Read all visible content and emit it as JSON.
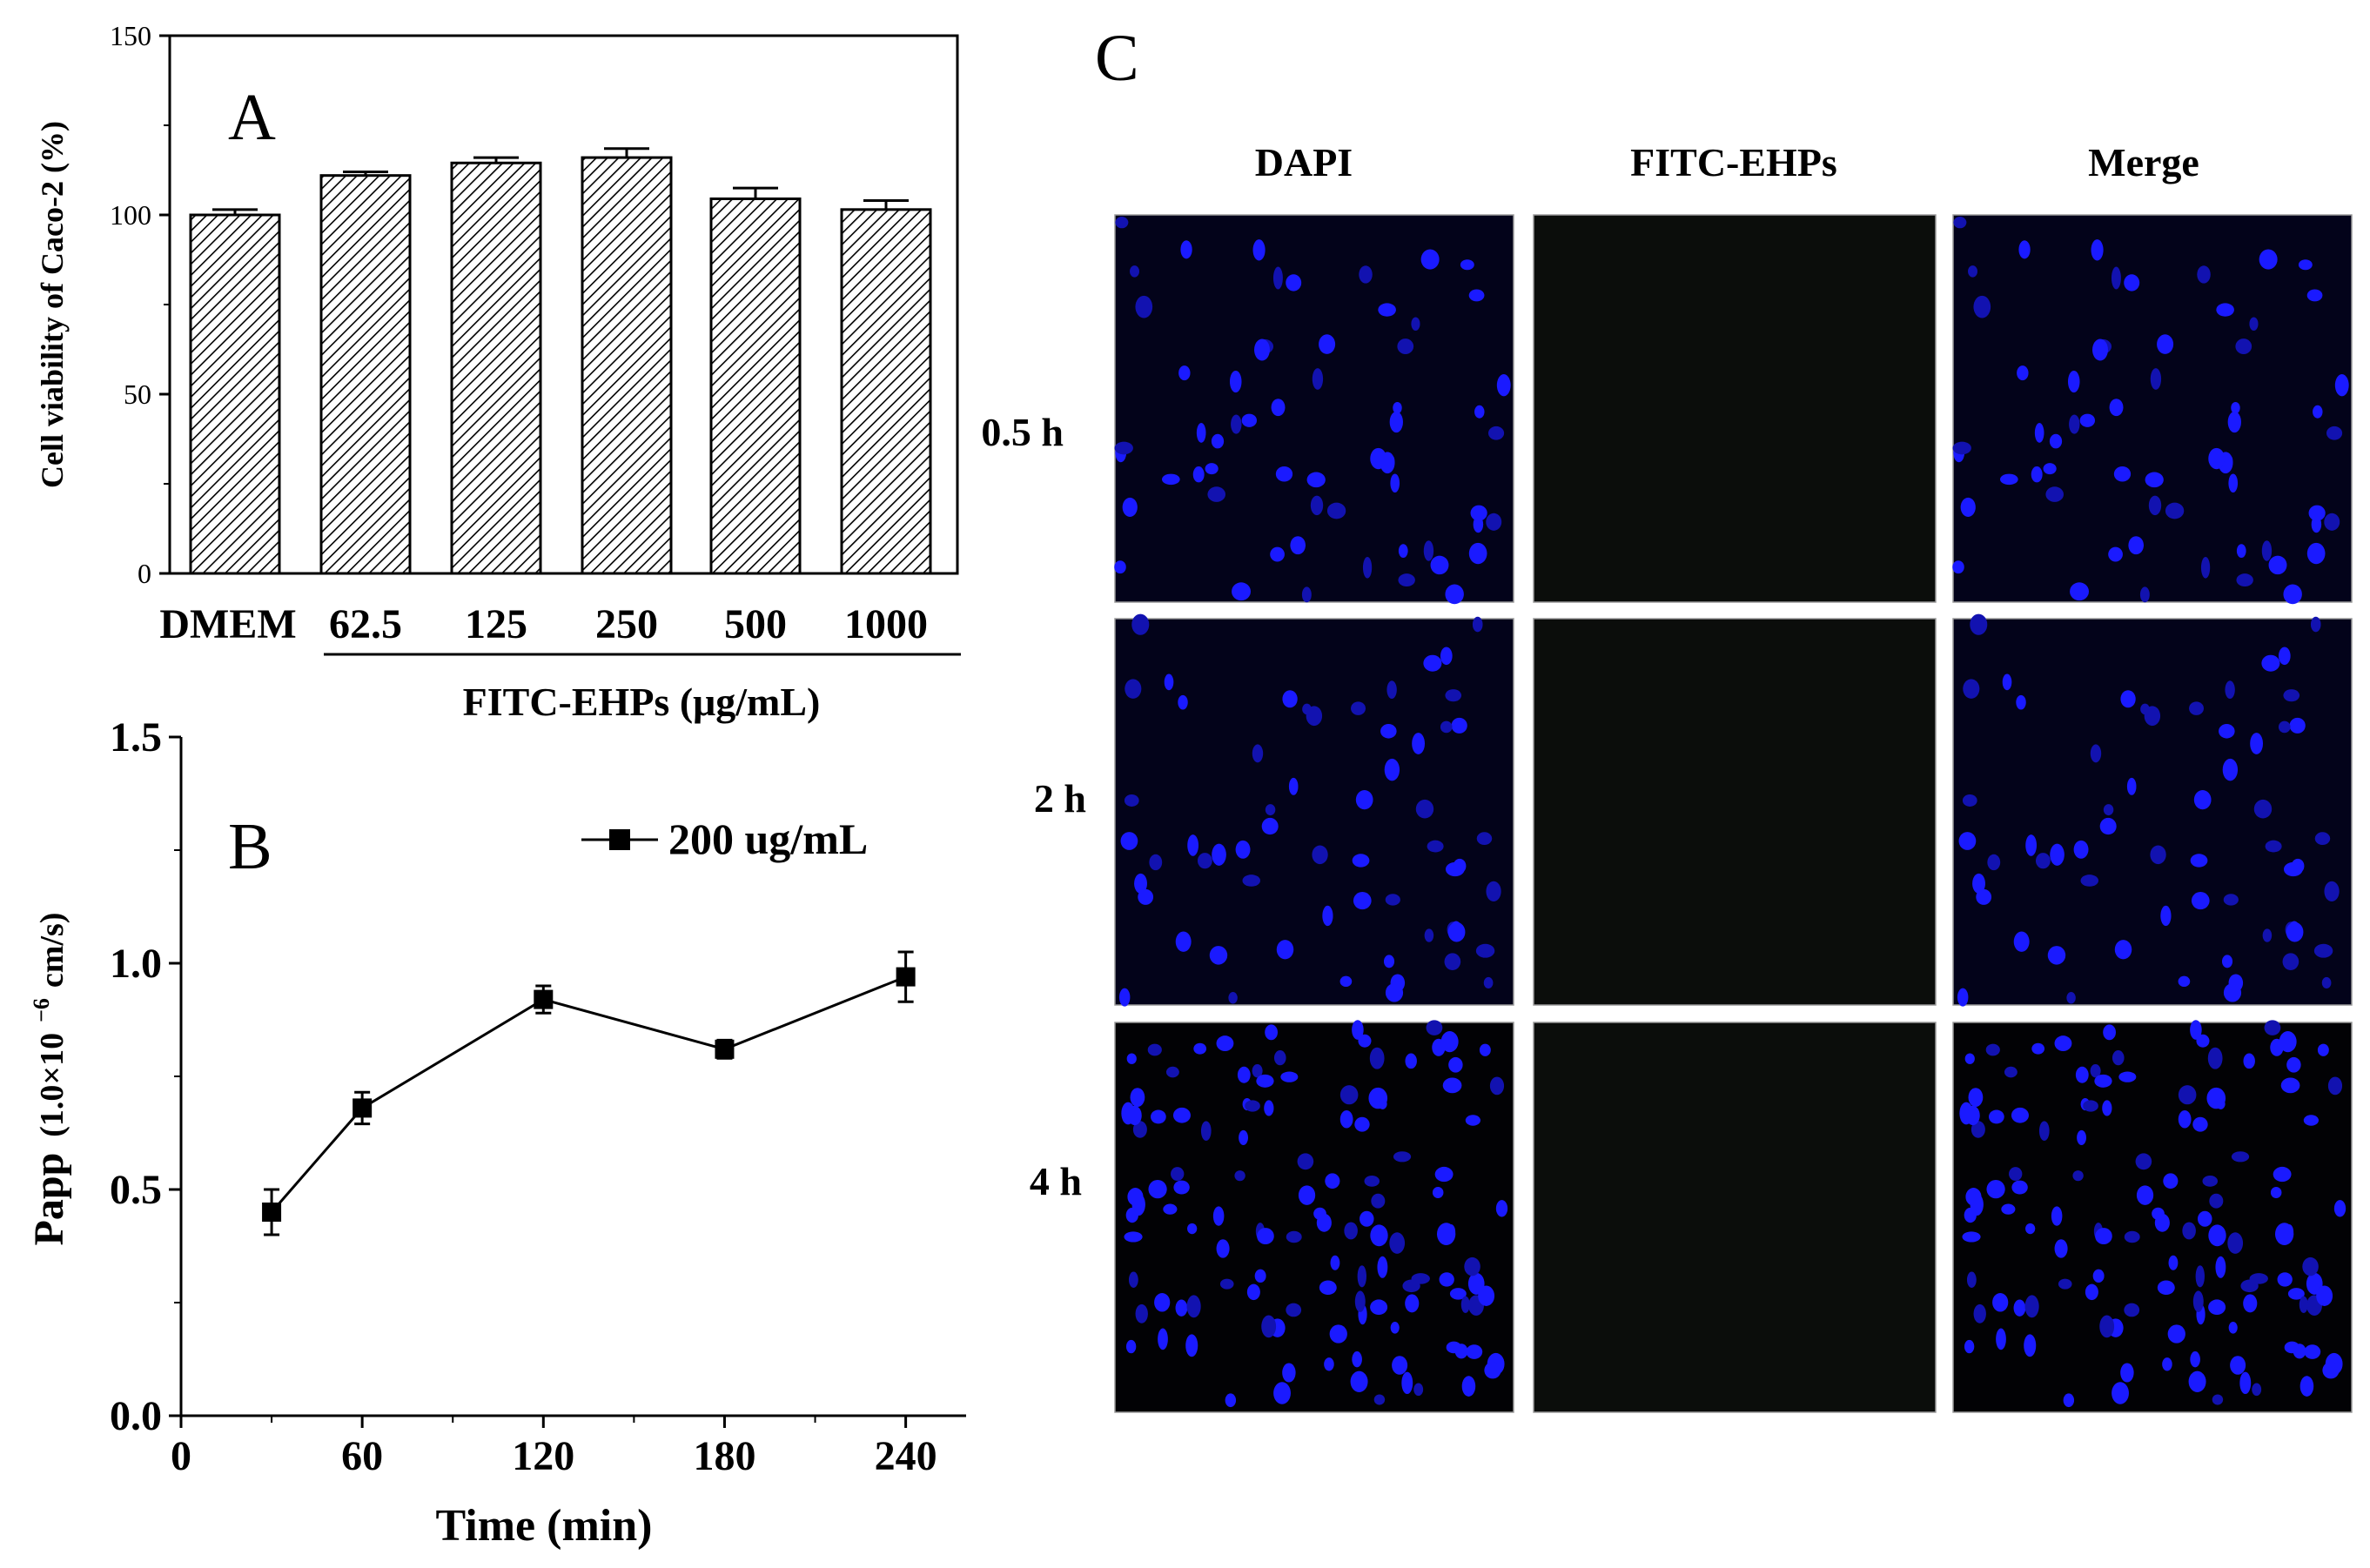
{
  "panels": {
    "a": {
      "letter": "A",
      "ylabel": "Cell viability of Caco-2 (%)",
      "group_label": "FITC-EHPs (μg/mL)",
      "y_ticks": [
        "0",
        "50",
        "100",
        "150"
      ]
    },
    "b": {
      "letter": "B",
      "ylabel_main": "Papp",
      "ylabel_unit_prefix": "(1.0×10",
      "ylabel_exp": "−6",
      "ylabel_unit_suffix": " cm/s)",
      "xlabel": "Time (min)",
      "legend": "200 ug/mL",
      "x_ticks": [
        "0",
        "60",
        "120",
        "180",
        "240"
      ],
      "y_ticks": [
        "0.0",
        "0.5",
        "1.0",
        "1.5"
      ]
    },
    "c": {
      "letter": "C",
      "columns": [
        "DAPI",
        "FITC-EHPs",
        "Merge"
      ],
      "rows": [
        "0.5 h",
        "2 h",
        "4 h"
      ]
    }
  },
  "chart_data": [
    {
      "type": "bar",
      "title": "",
      "ylabel": "Cell viability of Caco-2 (%)",
      "xlabel": "FITC-EHPs (μg/mL)",
      "ylim": [
        0,
        150
      ],
      "categories": [
        "DMEM",
        "62.5",
        "125",
        "250",
        "500",
        "1000"
      ],
      "values": [
        100,
        111,
        114.5,
        116,
        104.5,
        101.5
      ],
      "errors": [
        1.5,
        1,
        1.5,
        2.5,
        3,
        2.5
      ],
      "pattern": "diagonal-hatch"
    },
    {
      "type": "line",
      "title": "",
      "xlabel": "Time (min)",
      "ylabel": "Papp (1.0×10−6 cm/s)",
      "xlim": [
        0,
        260
      ],
      "ylim": [
        0.0,
        1.5
      ],
      "series": [
        {
          "name": "200 ug/mL",
          "x": [
            30,
            60,
            120,
            180,
            240
          ],
          "y": [
            0.45,
            0.68,
            0.92,
            0.81,
            0.97
          ],
          "errors": [
            0.05,
            0.035,
            0.03,
            0.02,
            0.055
          ]
        }
      ],
      "legend_position": "top-right"
    }
  ],
  "microscopy": {
    "colors": {
      "dapi_background": "#03031a",
      "fitc_background": "#0b0d0b",
      "nuclei": "#1a1aff",
      "nuclei_dim": "#1212b0",
      "border": "#9a9a9a"
    }
  }
}
